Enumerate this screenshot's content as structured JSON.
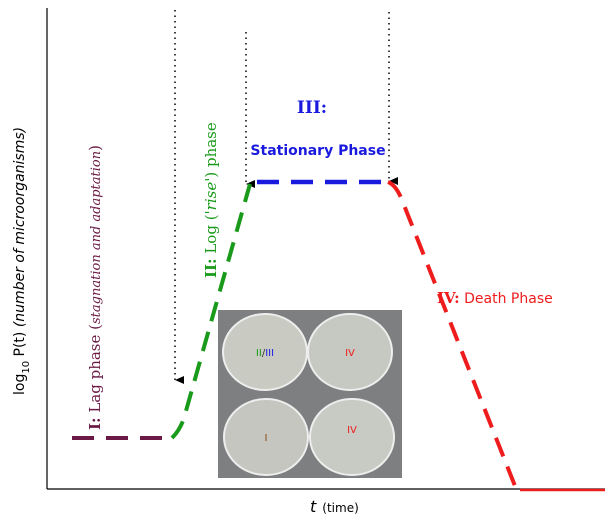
{
  "y_label": {
    "log": "log",
    "sub": "10",
    "main": " P(t) ",
    "desc": "(number of microorganisms)"
  },
  "x_label": {
    "t": "t",
    "unit": "(time)"
  },
  "phases": [
    {
      "num": "I:",
      "name": " Lag phase (",
      "note": "stagnation and adaptation",
      "end": ")"
    },
    {
      "num": "II:",
      "name": " Log (",
      "note": "'rise'",
      "end": ") phase"
    },
    {
      "num": "III:",
      "name": "Stationary Phase"
    },
    {
      "num": "IV:",
      "name": " Death Phase"
    }
  ],
  "plates": [
    {
      "a": "II",
      "sep": "/",
      "b": "III"
    },
    {
      "label": "IV"
    },
    {
      "label": "I"
    },
    {
      "label": "IV"
    }
  ]
}
